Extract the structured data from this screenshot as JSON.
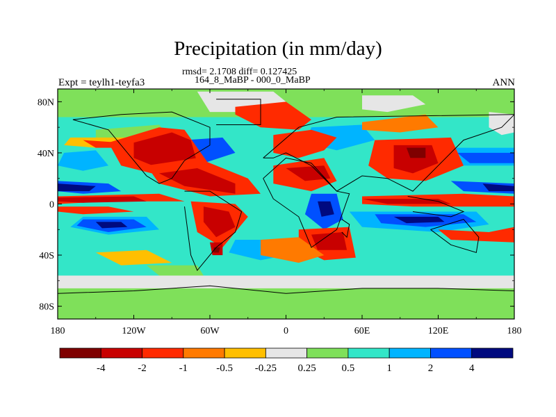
{
  "title": "Precipitation (in mm/day)",
  "stats": "rmsd= 2.1708 diff= 0.127425",
  "comparison": "164_8_MaBP - 000_0_MaBP",
  "experiment": "Expt = teylh1-teyfa3",
  "season": "ANN",
  "y_ticks": [
    "80N",
    "40N",
    "0",
    "40S",
    "80S"
  ],
  "x_ticks": [
    "180",
    "120W",
    "60W",
    "0",
    "60E",
    "120E",
    "180"
  ],
  "colorbar": {
    "colors": [
      "#7f0000",
      "#c80000",
      "#ff2a00",
      "#ff7a00",
      "#ffbf00",
      "#e6e6e6",
      "#7fe05a",
      "#33e6c8",
      "#00b4ff",
      "#0050ff",
      "#000a7f"
    ],
    "labels": [
      "-4",
      "-2",
      "-1",
      "-0.5",
      "-0.25",
      "0.25",
      "0.5",
      "1",
      "2",
      "4"
    ]
  },
  "regions": [
    {
      "color": "#33e6c8",
      "lon": [
        -180,
        180,
        180,
        -180
      ],
      "lat": [
        90,
        90,
        -90,
        -90
      ]
    },
    {
      "color": "#7fe05a",
      "lon": [
        -180,
        180,
        180,
        -180
      ],
      "lat": [
        90,
        90,
        68,
        68
      ]
    },
    {
      "color": "#7fe05a",
      "lon": [
        -180,
        180,
        180,
        -180
      ],
      "lat": [
        -62,
        -62,
        -90,
        -90
      ]
    },
    {
      "color": "#e6e6e6",
      "lon": [
        -180,
        180,
        180,
        -180
      ],
      "lat": [
        -56,
        -56,
        -66,
        -66
      ]
    },
    {
      "color": "#e6e6e6",
      "lon": [
        -70,
        -10,
        0,
        -30,
        -60
      ],
      "lat": [
        88,
        88,
        80,
        72,
        72
      ]
    },
    {
      "color": "#e6e6e6",
      "lon": [
        60,
        100,
        110,
        80,
        60
      ],
      "lat": [
        85,
        85,
        78,
        72,
        74
      ]
    },
    {
      "color": "#e6e6e6",
      "lon": [
        160,
        180,
        180,
        170,
        160
      ],
      "lat": [
        72,
        70,
        56,
        54,
        60
      ]
    },
    {
      "color": "#7fe05a",
      "lon": [
        -150,
        -100,
        -90,
        -120,
        -150
      ],
      "lat": [
        58,
        62,
        50,
        46,
        50
      ]
    },
    {
      "color": "#00b4ff",
      "lon": [
        -175,
        -150,
        -140,
        -160,
        -180
      ],
      "lat": [
        40,
        42,
        30,
        26,
        30
      ]
    },
    {
      "color": "#0050ff",
      "lon": [
        -180,
        -140,
        -130,
        -160,
        -180
      ],
      "lat": [
        18,
        16,
        10,
        8,
        10
      ]
    },
    {
      "color": "#000a7f",
      "lon": [
        -180,
        -150,
        -155,
        -180
      ],
      "lat": [
        16,
        14,
        10,
        10
      ]
    },
    {
      "color": "#0050ff",
      "lon": [
        130,
        180,
        180,
        140
      ],
      "lat": [
        18,
        16,
        8,
        10
      ]
    },
    {
      "color": "#000a7f",
      "lon": [
        155,
        180,
        180,
        160
      ],
      "lat": [
        16,
        14,
        10,
        10
      ]
    },
    {
      "color": "#00b4ff",
      "lon": [
        -160,
        -110,
        -100,
        -140,
        -170
      ],
      "lat": [
        -10,
        -10,
        -20,
        -24,
        -18
      ]
    },
    {
      "color": "#0050ff",
      "lon": [
        -160,
        -120,
        -110,
        -140,
        -165
      ],
      "lat": [
        -12,
        -12,
        -18,
        -22,
        -17
      ]
    },
    {
      "color": "#000a7f",
      "lon": [
        -150,
        -130,
        -125,
        -145
      ],
      "lat": [
        -14,
        -14,
        -18,
        -19
      ]
    },
    {
      "color": "#00b4ff",
      "lon": [
        50,
        150,
        160,
        120,
        60
      ],
      "lat": [
        -6,
        -6,
        -16,
        -22,
        -18
      ]
    },
    {
      "color": "#0050ff",
      "lon": [
        70,
        140,
        150,
        110,
        75
      ],
      "lat": [
        -8,
        -8,
        -14,
        -18,
        -15
      ]
    },
    {
      "color": "#000a7f",
      "lon": [
        85,
        120,
        125,
        95
      ],
      "lat": [
        -10,
        -10,
        -14,
        -15
      ]
    },
    {
      "color": "#0050ff",
      "lon": [
        -80,
        -50,
        -40,
        -65,
        -85
      ],
      "lat": [
        50,
        52,
        40,
        32,
        38
      ]
    },
    {
      "color": "#00b4ff",
      "lon": [
        20,
        60,
        70,
        40,
        15
      ],
      "lat": [
        60,
        62,
        50,
        42,
        48
      ]
    },
    {
      "color": "#0050ff",
      "lon": [
        20,
        40,
        45,
        30,
        15
      ],
      "lat": [
        8,
        8,
        -12,
        -20,
        -8
      ]
    },
    {
      "color": "#000a7f",
      "lon": [
        25,
        35,
        38,
        28
      ],
      "lat": [
        2,
        2,
        -8,
        -10
      ]
    },
    {
      "color": "#00b4ff",
      "lon": [
        -40,
        -10,
        0,
        -20,
        -45
      ],
      "lat": [
        -28,
        -28,
        -40,
        -44,
        -38
      ]
    },
    {
      "color": "#00b4ff",
      "lon": [
        120,
        180,
        180,
        140,
        120
      ],
      "lat": [
        44,
        44,
        30,
        30,
        36
      ]
    },
    {
      "color": "#0050ff",
      "lon": [
        135,
        180,
        180,
        145
      ],
      "lat": [
        40,
        40,
        32,
        32
      ]
    },
    {
      "color": "#ffbf00",
      "lon": [
        -170,
        -120,
        -110,
        -150,
        -175
      ],
      "lat": [
        52,
        52,
        46,
        44,
        46
      ]
    },
    {
      "color": "#ff2a00",
      "lon": [
        -160,
        -130,
        -125,
        -150
      ],
      "lat": [
        50,
        48,
        44,
        44
      ]
    },
    {
      "color": "#ff2a00",
      "lon": [
        -180,
        -100,
        -80,
        -140,
        -180
      ],
      "lat": [
        6,
        8,
        2,
        2,
        0
      ]
    },
    {
      "color": "#c80000",
      "lon": [
        -180,
        -120,
        -110,
        -160,
        -180
      ],
      "lat": [
        5,
        6,
        2,
        1,
        2
      ]
    },
    {
      "color": "#ff2a00",
      "lon": [
        -180,
        -140,
        -120,
        -160,
        -180
      ],
      "lat": [
        -2,
        -2,
        -6,
        -8,
        -6
      ]
    },
    {
      "color": "#ff2a00",
      "lon": [
        -140,
        -100,
        -80,
        -60,
        -90,
        -130
      ],
      "lat": [
        48,
        60,
        58,
        30,
        20,
        30
      ]
    },
    {
      "color": "#c80000",
      "lon": [
        -120,
        -90,
        -75,
        -70,
        -100,
        -120
      ],
      "lat": [
        48,
        56,
        50,
        32,
        28,
        36
      ]
    },
    {
      "color": "#ff2a00",
      "lon": [
        -110,
        -70,
        -30,
        -20,
        -60,
        -100
      ],
      "lat": [
        30,
        36,
        20,
        8,
        6,
        16
      ]
    },
    {
      "color": "#c80000",
      "lon": [
        -100,
        -70,
        -40,
        -40,
        -80
      ],
      "lat": [
        24,
        28,
        16,
        8,
        14
      ]
    },
    {
      "color": "#ff2a00",
      "lon": [
        -75,
        -40,
        -30,
        -50,
        -70
      ],
      "lat": [
        2,
        0,
        -10,
        -34,
        -22
      ]
    },
    {
      "color": "#c80000",
      "lon": [
        -65,
        -45,
        -40,
        -55,
        -65
      ],
      "lat": [
        -2,
        -6,
        -18,
        -26,
        -14
      ]
    },
    {
      "color": "#c80000",
      "lon": [
        -60,
        -50,
        -50,
        -58
      ],
      "lat": [
        -30,
        -30,
        -40,
        -40
      ]
    },
    {
      "color": "#7f0000",
      "lon": [
        -57,
        -52,
        -53,
        -57
      ],
      "lat": [
        -34,
        -34,
        -38,
        -38
      ]
    },
    {
      "color": "#ff2a00",
      "lon": [
        -40,
        0,
        20,
        10,
        -20,
        -40
      ],
      "lat": [
        76,
        80,
        66,
        58,
        60,
        70
      ]
    },
    {
      "color": "#ff2a00",
      "lon": [
        -10,
        20,
        40,
        30,
        10,
        -10
      ],
      "lat": [
        54,
        58,
        52,
        42,
        36,
        40
      ]
    },
    {
      "color": "#ff2a00",
      "lon": [
        -10,
        30,
        40,
        20,
        -10
      ],
      "lat": [
        30,
        36,
        18,
        10,
        16
      ]
    },
    {
      "color": "#c80000",
      "lon": [
        0,
        30,
        35,
        15
      ],
      "lat": [
        28,
        30,
        20,
        18
      ]
    },
    {
      "color": "#ff2a00",
      "lon": [
        10,
        50,
        55,
        30,
        10
      ],
      "lat": [
        -20,
        -18,
        -42,
        -44,
        -34
      ]
    },
    {
      "color": "#c80000",
      "lon": [
        20,
        45,
        48,
        25
      ],
      "lat": [
        -24,
        -22,
        -36,
        -36
      ]
    },
    {
      "color": "#ff2a00",
      "lon": [
        70,
        130,
        140,
        110,
        80,
        65
      ],
      "lat": [
        50,
        52,
        30,
        18,
        20,
        30
      ]
    },
    {
      "color": "#c80000",
      "lon": [
        85,
        115,
        120,
        100,
        85
      ],
      "lat": [
        46,
        46,
        32,
        24,
        28
      ]
    },
    {
      "color": "#7f0000",
      "lon": [
        95,
        110,
        110,
        98
      ],
      "lat": [
        44,
        44,
        36,
        36
      ]
    },
    {
      "color": "#ff2a00",
      "lon": [
        60,
        140,
        180,
        180,
        100,
        60
      ],
      "lat": [
        6,
        8,
        6,
        -2,
        -2,
        0
      ]
    },
    {
      "color": "#c80000",
      "lon": [
        60,
        120,
        130,
        80
      ],
      "lat": [
        4,
        4,
        0,
        0
      ]
    },
    {
      "color": "#ff2a00",
      "lon": [
        120,
        160,
        180,
        180,
        130
      ],
      "lat": [
        -20,
        -22,
        -18,
        -30,
        -28
      ]
    },
    {
      "color": "#ff7a00",
      "lon": [
        60,
        110,
        120,
        90,
        60
      ],
      "lat": [
        64,
        70,
        60,
        56,
        58
      ]
    },
    {
      "color": "#ff7a00",
      "lon": [
        -20,
        10,
        30,
        10,
        -20
      ],
      "lat": [
        -28,
        -26,
        -40,
        -46,
        -40
      ]
    },
    {
      "color": "#ffbf00",
      "lon": [
        -150,
        -110,
        -90,
        -130
      ],
      "lat": [
        -38,
        -36,
        -46,
        -48
      ]
    },
    {
      "color": "#7fe05a",
      "lon": [
        -110,
        -70,
        -65,
        -100
      ],
      "lat": [
        -48,
        -48,
        -56,
        -56
      ]
    }
  ],
  "coastlines": [
    {
      "lon": [
        -168,
        -130,
        -90,
        -60,
        -60,
        -80,
        -90,
        -100,
        -110,
        -125,
        -140,
        -168
      ],
      "lat": [
        66,
        70,
        72,
        60,
        46,
        34,
        20,
        16,
        22,
        40,
        58,
        66
      ]
    },
    {
      "lon": [
        -80,
        -60,
        -35,
        -40,
        -55,
        -70,
        -75,
        -80
      ],
      "lat": [
        10,
        10,
        -6,
        -22,
        -34,
        -52,
        -40,
        -2
      ]
    },
    {
      "lon": [
        -55,
        -20,
        -20,
        -55
      ],
      "lat": [
        82,
        82,
        62,
        62
      ]
    },
    {
      "lon": [
        -18,
        10,
        40,
        180,
        170,
        140,
        120,
        100,
        80,
        60,
        40,
        20,
        0,
        -10,
        -18
      ],
      "lat": [
        36,
        60,
        68,
        70,
        60,
        50,
        30,
        10,
        20,
        22,
        10,
        30,
        40,
        36,
        36
      ]
    },
    {
      "lon": [
        -18,
        0,
        20,
        40,
        50,
        40,
        20,
        10,
        -10,
        -18
      ],
      "lat": [
        20,
        36,
        32,
        10,
        8,
        -20,
        -34,
        -10,
        4,
        20
      ]
    },
    {
      "lon": [
        44,
        50,
        48,
        44
      ],
      "lat": [
        -12,
        -16,
        -26,
        -22
      ]
    },
    {
      "lon": [
        114,
        140,
        152,
        150,
        130,
        114
      ],
      "lat": [
        -20,
        -12,
        -26,
        -38,
        -32,
        -20
      ]
    },
    {
      "lon": [
        96,
        120,
        140,
        130,
        100
      ],
      "lat": [
        6,
        2,
        -6,
        -10,
        -6
      ]
    },
    {
      "lon": [
        -180,
        -120,
        -60,
        0,
        60,
        120,
        180
      ],
      "lat": [
        -70,
        -68,
        -64,
        -70,
        -66,
        -66,
        -68
      ]
    }
  ]
}
